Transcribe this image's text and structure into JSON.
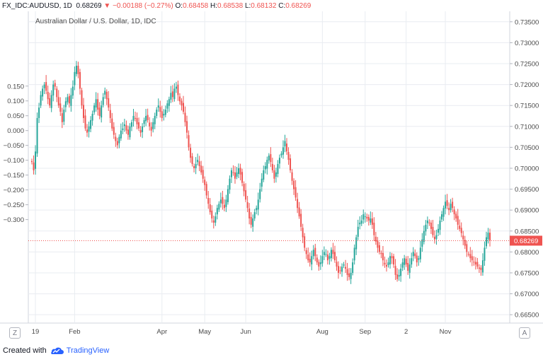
{
  "header": {
    "symbol": "FX_IDC:AUDUSD, 1D",
    "last": "0.68269",
    "change_arrow": "▼",
    "change": "−0.00188 (−0.27%)",
    "o_label": "O:",
    "o_value": "0.68458",
    "h_label": "H:",
    "h_value": "0.68538",
    "l_label": "L:",
    "l_value": "0.68132",
    "c_label": "C:",
    "c_value": "0.68269"
  },
  "footer": {
    "created_with": "Created with",
    "brand": "TradingView"
  },
  "buttons": {
    "zoom": "Z",
    "auto": "A"
  },
  "colors": {
    "up": "#26a69a",
    "down": "#ef5350",
    "grid": "#e9ecf1",
    "axis_text": "#4a4a4a",
    "last_price_tag": "#ef5350"
  },
  "chart_data": {
    "type": "candlestick",
    "title": "Australian Dollar / U.S. Dollar, 1D, IDC",
    "left_axis": {
      "ticks": [
        "0.150",
        "0.100",
        "0.050",
        "0.000",
        "−0.050",
        "−0.100",
        "−0.150",
        "−0.200",
        "−0.250",
        "−0.300"
      ],
      "values": [
        0.15,
        0.1,
        0.05,
        0.0,
        -0.05,
        -0.1,
        -0.15,
        -0.2,
        -0.25,
        -0.3
      ]
    },
    "right_axis": {
      "ticks": [
        "0.73500",
        "0.73000",
        "0.72500",
        "0.72000",
        "0.71500",
        "0.71000",
        "0.70500",
        "0.70000",
        "0.69500",
        "0.69000",
        "0.68500",
        "0.68000",
        "0.67500",
        "0.67000",
        "0.66500"
      ],
      "values": [
        0.735,
        0.73,
        0.725,
        0.72,
        0.715,
        0.71,
        0.705,
        0.7,
        0.695,
        0.69,
        0.685,
        0.68,
        0.675,
        0.67,
        0.665
      ],
      "ylim": [
        0.663,
        0.7375
      ]
    },
    "x_axis": {
      "ticks": [
        "19",
        "Feb",
        "Apr",
        "May",
        "Jun",
        "Aug",
        "Sep",
        "2",
        "Nov"
      ],
      "tick_index": [
        2,
        24,
        73,
        97,
        120,
        163,
        187,
        210,
        232
      ]
    },
    "last_price": 0.68269,
    "last_price_label": "0.68269",
    "close_series": [
      0.7015,
      0.6995,
      0.704,
      0.712,
      0.7145,
      0.7175,
      0.719,
      0.72,
      0.7185,
      0.7165,
      0.715,
      0.7175,
      0.72,
      0.7195,
      0.717,
      0.715,
      0.7135,
      0.711,
      0.714,
      0.716,
      0.717,
      0.7155,
      0.7175,
      0.7195,
      0.723,
      0.7245,
      0.7225,
      0.719,
      0.715,
      0.712,
      0.7095,
      0.7085,
      0.71,
      0.7115,
      0.713,
      0.715,
      0.7165,
      0.714,
      0.7125,
      0.715,
      0.717,
      0.7185,
      0.7165,
      0.7145,
      0.712,
      0.7095,
      0.708,
      0.7065,
      0.7055,
      0.7075,
      0.709,
      0.7095,
      0.7105,
      0.709,
      0.708,
      0.71,
      0.711,
      0.7125,
      0.712,
      0.7105,
      0.7095,
      0.7085,
      0.71,
      0.7115,
      0.7125,
      0.7115,
      0.71,
      0.709,
      0.711,
      0.7125,
      0.714,
      0.715,
      0.7135,
      0.712,
      0.713,
      0.714,
      0.7155,
      0.7165,
      0.718,
      0.717,
      0.719,
      0.7195,
      0.7175,
      0.716,
      0.715,
      0.7135,
      0.711,
      0.7085,
      0.705,
      0.7025,
      0.701,
      0.7,
      0.701,
      0.702,
      0.7005,
      0.699,
      0.6975,
      0.696,
      0.6935,
      0.6915,
      0.6895,
      0.688,
      0.687,
      0.6885,
      0.6905,
      0.6915,
      0.6925,
      0.6915,
      0.6905,
      0.6925,
      0.695,
      0.6975,
      0.6995,
      0.699,
      0.6975,
      0.699,
      0.7,
      0.6985,
      0.6965,
      0.6945,
      0.6925,
      0.6905,
      0.688,
      0.6865,
      0.688,
      0.6895,
      0.6905,
      0.6925,
      0.695,
      0.6975,
      0.6995,
      0.7005,
      0.702,
      0.703,
      0.7015,
      0.6995,
      0.6975,
      0.699,
      0.701,
      0.7025,
      0.7035,
      0.705,
      0.7065,
      0.704,
      0.702,
      0.6995,
      0.697,
      0.695,
      0.693,
      0.6905,
      0.6885,
      0.686,
      0.6835,
      0.681,
      0.6795,
      0.678,
      0.6775,
      0.679,
      0.6805,
      0.679,
      0.6775,
      0.6765,
      0.6775,
      0.679,
      0.68,
      0.6795,
      0.678,
      0.679,
      0.6805,
      0.6795,
      0.678,
      0.6765,
      0.675,
      0.6755,
      0.6765,
      0.677,
      0.676,
      0.6745,
      0.674,
      0.675,
      0.6775,
      0.681,
      0.6835,
      0.686,
      0.687,
      0.6875,
      0.689,
      0.6885,
      0.688,
      0.6875,
      0.688,
      0.6865,
      0.684,
      0.6825,
      0.681,
      0.68,
      0.6795,
      0.678,
      0.677,
      0.6765,
      0.6775,
      0.679,
      0.6785,
      0.677,
      0.6745,
      0.6735,
      0.6745,
      0.676,
      0.6775,
      0.6785,
      0.677,
      0.6755,
      0.677,
      0.6785,
      0.68,
      0.679,
      0.6775,
      0.6785,
      0.681,
      0.683,
      0.685,
      0.6865,
      0.6875,
      0.687,
      0.6855,
      0.684,
      0.683,
      0.684,
      0.6855,
      0.6875,
      0.689,
      0.6905,
      0.692,
      0.691,
      0.69,
      0.6915,
      0.6905,
      0.689,
      0.688,
      0.6865,
      0.6855,
      0.6845,
      0.683,
      0.6815,
      0.68,
      0.6795,
      0.6785,
      0.678,
      0.6775,
      0.677,
      0.6765,
      0.676,
      0.6757,
      0.678,
      0.681,
      0.6835,
      0.6846,
      0.6827
    ]
  }
}
